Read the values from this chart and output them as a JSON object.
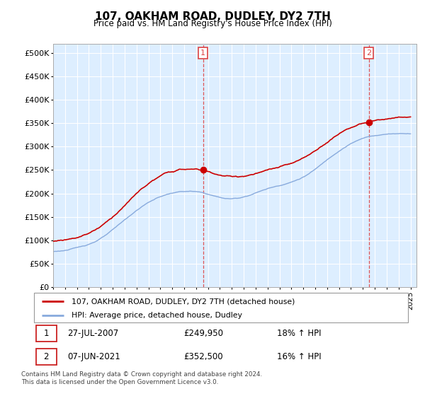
{
  "title": "107, OAKHAM ROAD, DUDLEY, DY2 7TH",
  "subtitle": "Price paid vs. HM Land Registry's House Price Index (HPI)",
  "hpi_label": "HPI: Average price, detached house, Dudley",
  "property_label": "107, OAKHAM ROAD, DUDLEY, DY2 7TH (detached house)",
  "footnote": "Contains HM Land Registry data © Crown copyright and database right 2024.\nThis data is licensed under the Open Government Licence v3.0.",
  "sale1_date": "27-JUL-2007",
  "sale1_price": 249950,
  "sale1_hpi": "18% ↑ HPI",
  "sale2_date": "07-JUN-2021",
  "sale2_price": 352500,
  "sale2_hpi": "16% ↑ HPI",
  "property_color": "#cc0000",
  "hpi_color": "#88aadd",
  "vline_color": "#dd4444",
  "ylim_min": 0,
  "ylim_max": 520000,
  "yticks": [
    0,
    50000,
    100000,
    150000,
    200000,
    250000,
    300000,
    350000,
    400000,
    450000,
    500000
  ],
  "xmin": 1995,
  "xmax": 2025.5,
  "plot_bg": "#ddeeff",
  "background_color": "#ffffff",
  "grid_color": "#ffffff"
}
